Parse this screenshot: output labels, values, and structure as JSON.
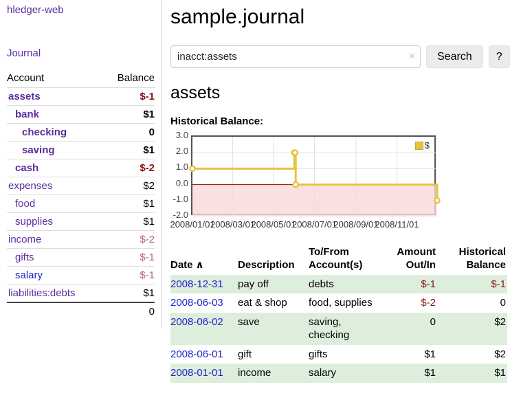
{
  "colors": {
    "purple-link": "#5c2d9c",
    "blue-link": "#2323cc",
    "neg-strong": "#8b0f0f",
    "neg-faded": "#b36b6b",
    "table-neg": "#8b1a1a",
    "stripe-green": "#ddeedd",
    "chart-line": "#e8c240",
    "chart-neg-fill": "#f9d9da",
    "chart-zero": "#9a0000",
    "btn-bg": "#ebebeb"
  },
  "app": {
    "brand": "hledger-web",
    "nav_journal": "Journal"
  },
  "sidebar": {
    "headers": {
      "account": "Account",
      "balance": "Balance"
    },
    "accounts": [
      {
        "name": "assets",
        "level": 1,
        "bold": true,
        "balance": "$-1",
        "balance_style": "neg-strong",
        "link_color": "purple"
      },
      {
        "name": "bank",
        "level": 2,
        "bold": true,
        "balance": "$1",
        "balance_style": "normal",
        "link_color": "purple"
      },
      {
        "name": "checking",
        "level": 3,
        "bold": true,
        "balance": "0",
        "balance_style": "normal",
        "link_color": "purple"
      },
      {
        "name": "saving",
        "level": 3,
        "bold": true,
        "balance": "$1",
        "balance_style": "normal",
        "link_color": "purple"
      },
      {
        "name": "cash",
        "level": 2,
        "bold": true,
        "balance": "$-2",
        "balance_style": "neg-strong",
        "link_color": "purple"
      },
      {
        "name": "expenses",
        "level": 1,
        "bold": false,
        "balance": "$2",
        "balance_style": "normal",
        "link_color": "purple"
      },
      {
        "name": "food",
        "level": 2,
        "bold": false,
        "balance": "$1",
        "balance_style": "normal",
        "link_color": "purple"
      },
      {
        "name": "supplies",
        "level": 2,
        "bold": false,
        "balance": "$1",
        "balance_style": "normal",
        "link_color": "purple"
      },
      {
        "name": "income",
        "level": 1,
        "bold": false,
        "balance": "$-2",
        "balance_style": "neg-faded",
        "link_color": "purple"
      },
      {
        "name": "gifts",
        "level": 2,
        "bold": false,
        "balance": "$-1",
        "balance_style": "neg-faded",
        "link_color": "purple"
      },
      {
        "name": "salary",
        "level": 2,
        "bold": false,
        "balance": "$-1",
        "balance_style": "neg-faded",
        "link_color": "blue"
      },
      {
        "name": "liabilities:debts",
        "level": 1,
        "bold": false,
        "balance": "$1",
        "balance_style": "normal",
        "link_color": "purple"
      }
    ],
    "total": "0"
  },
  "header": {
    "title": "sample.journal"
  },
  "search": {
    "value": "inacct:assets",
    "clear_icon": "×",
    "button_label": "Search",
    "help_label": "?"
  },
  "account_page": {
    "title": "assets",
    "chart_label": "Historical Balance:"
  },
  "chart_data": {
    "type": "line",
    "title": "Historical Balance:",
    "series": [
      {
        "name": "$",
        "color": "#e8c240",
        "step": true,
        "markers": true,
        "points": [
          [
            "2008-01-01",
            1
          ],
          [
            "2008-06-01",
            2
          ],
          [
            "2008-06-02",
            2
          ],
          [
            "2008-06-03",
            0
          ],
          [
            "2008-12-31",
            -1
          ]
        ]
      }
    ],
    "xlim": [
      "2008-01-01",
      "2008-12-31"
    ],
    "ylim": [
      -2,
      3
    ],
    "yticks": [
      {
        "v": 3,
        "label": "3.0"
      },
      {
        "v": 2,
        "label": "2.0"
      },
      {
        "v": 1,
        "label": "1.0"
      },
      {
        "v": 0,
        "label": "0.0"
      },
      {
        "v": -1,
        "label": "-1.0"
      },
      {
        "v": -2,
        "label": "-2.0"
      }
    ],
    "xticks": [
      {
        "date": "2008-01-01",
        "label": "2008/01/01"
      },
      {
        "date": "2008-03-01",
        "label": "2008/03/01"
      },
      {
        "date": "2008-05-01",
        "label": "2008/05/01"
      },
      {
        "date": "2008-07-01",
        "label": "2008/07/01"
      },
      {
        "date": "2008-09-01",
        "label": "2008/09/01"
      },
      {
        "date": "2008-11-01",
        "label": "2008/11/01"
      }
    ],
    "legend": {
      "label": "$",
      "position": "top-right"
    },
    "grid": true,
    "negative_region": true
  },
  "register": {
    "sort_caret": "∧",
    "headers": {
      "date": "Date",
      "description": "Description",
      "accounts": "To/From Account(s)",
      "amount": "Amount Out/In",
      "balance": "Historical Balance"
    },
    "rows": [
      {
        "date": "2008-12-31",
        "description": "pay off",
        "accounts": "debts",
        "amount": "$-1",
        "amount_neg": true,
        "balance": "$-1",
        "balance_neg": true
      },
      {
        "date": "2008-06-03",
        "description": "eat & shop",
        "accounts": "food, supplies",
        "amount": "$-2",
        "amount_neg": true,
        "balance": "0",
        "balance_neg": false
      },
      {
        "date": "2008-06-02",
        "description": "save",
        "accounts": "saving, checking",
        "amount": "0",
        "amount_neg": false,
        "balance": "$2",
        "balance_neg": false
      },
      {
        "date": "2008-06-01",
        "description": "gift",
        "accounts": "gifts",
        "amount": "$1",
        "amount_neg": false,
        "balance": "$2",
        "balance_neg": false
      },
      {
        "date": "2008-01-01",
        "description": "income",
        "accounts": "salary",
        "amount": "$1",
        "amount_neg": false,
        "balance": "$1",
        "balance_neg": false
      }
    ]
  }
}
